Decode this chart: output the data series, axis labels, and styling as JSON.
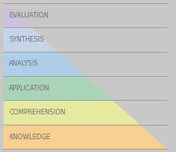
{
  "levels": [
    {
      "label": "EVALUATION",
      "color": "#cfc0dd"
    },
    {
      "label": "SYNTHESIS",
      "color": "#c5d4e8"
    },
    {
      "label": "ANALYSIS",
      "color": "#aecfe8"
    },
    {
      "label": "APPLICATION",
      "color": "#aad4b8"
    },
    {
      "label": "COMPREHENSION",
      "color": "#e8e8a0"
    },
    {
      "label": "KNOWLEDGE",
      "color": "#f5d090"
    }
  ],
  "bg_color": "#c8c8c8",
  "text_color": "#707070",
  "line_color": "#909090",
  "font_size": 5.8,
  "figsize": [
    2.2,
    1.9
  ],
  "dpi": 100
}
